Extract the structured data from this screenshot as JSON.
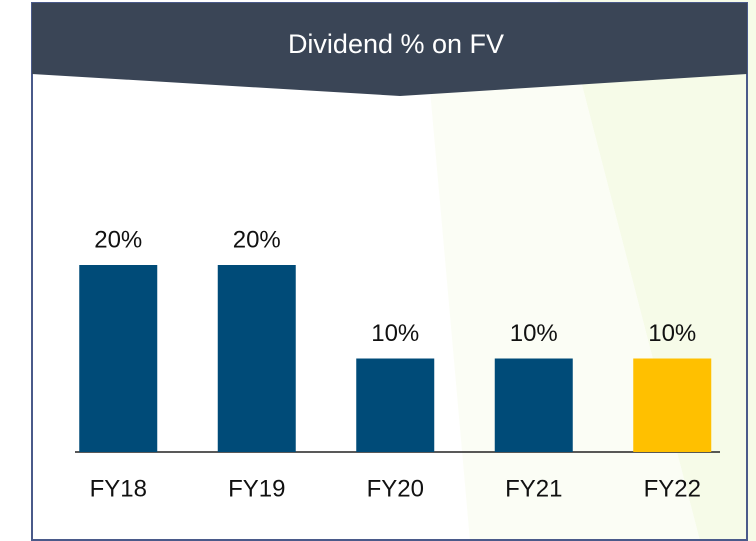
{
  "chart_data": {
    "type": "bar",
    "title": "Dividend % on FV",
    "categories": [
      "FY18",
      "FY19",
      "FY20",
      "FY21",
      "FY22"
    ],
    "values": [
      20,
      20,
      10,
      10,
      10
    ],
    "value_labels": [
      "20%",
      "20%",
      "10%",
      "10%",
      "10%"
    ],
    "colors": [
      "#004b78",
      "#004b78",
      "#004b78",
      "#004b78",
      "#ffc000"
    ]
  }
}
